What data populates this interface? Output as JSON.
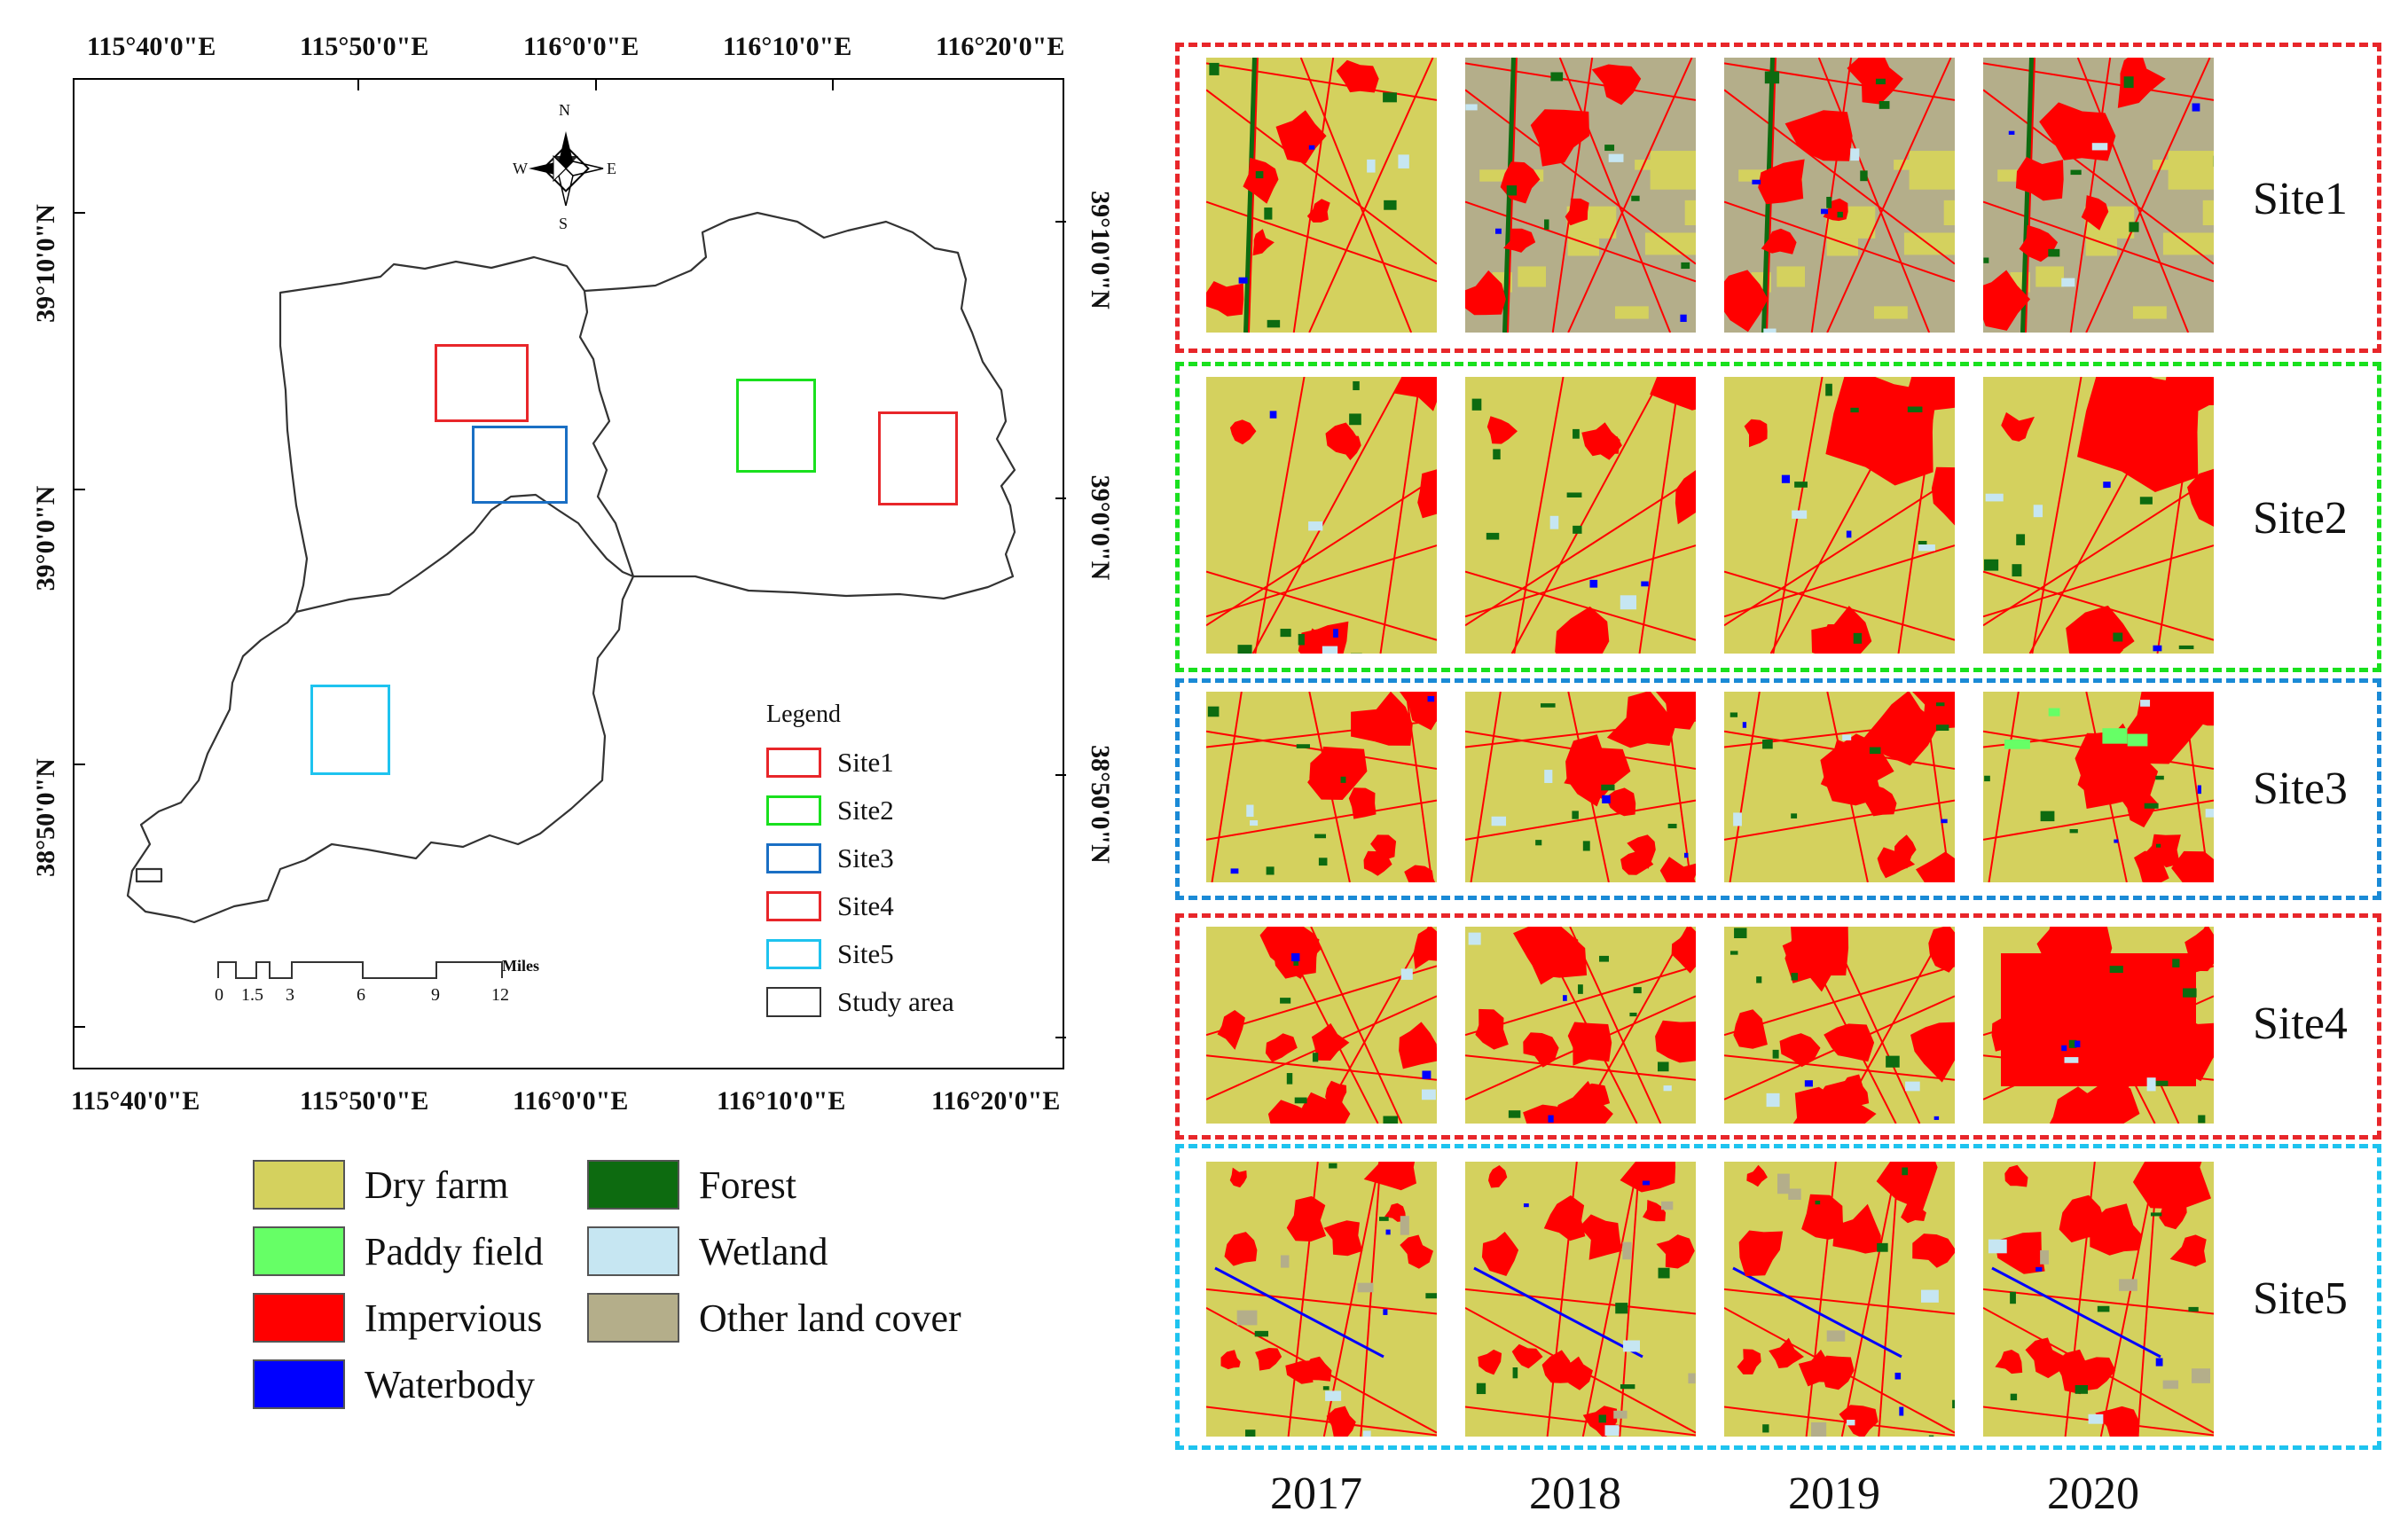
{
  "map": {
    "top_longitudes": [
      "115°40'0\"E",
      "115°50'0\"E",
      "116°0'0\"E",
      "116°10'0\"E",
      "116°20'0\"E"
    ],
    "bottom_longitudes": [
      "115°40'0\"E",
      "115°50'0\"E",
      "116°0'0\"E",
      "116°10'0\"E",
      "116°20'0\"E"
    ],
    "left_latitudes": [
      "39°10'0\"N",
      "39°0'0\"N",
      "38°50'0\"N"
    ],
    "right_latitudes": [
      "39°10'0\"N",
      "39°0'0\"N",
      "38°50'0\"N"
    ],
    "compass": {
      "n": "N",
      "s": "S",
      "e": "E",
      "w": "W"
    },
    "scale_bar": {
      "ticks": [
        "0",
        "1.5",
        "3",
        "6",
        "9",
        "12"
      ],
      "unit": "Miles"
    },
    "legend": {
      "title": "Legend",
      "items": [
        {
          "label": "Site1",
          "color": "#e8262a"
        },
        {
          "label": "Site2",
          "color": "#19e01e"
        },
        {
          "label": "Site3",
          "color": "#1a6fc4"
        },
        {
          "label": "Site4",
          "color": "#e8262a"
        },
        {
          "label": "Site5",
          "color": "#1ec3ef"
        },
        {
          "label": "Study area",
          "color": "#333333"
        }
      ]
    }
  },
  "land_cover_legend": [
    {
      "label": "Dry farm",
      "color": "#d4d15e"
    },
    {
      "label": "Forest",
      "color": "#0d6b10"
    },
    {
      "label": "Paddy field",
      "color": "#66ff66"
    },
    {
      "label": "Wetland",
      "color": "#c6e6f2"
    },
    {
      "label": "Impervious",
      "color": "#ff0000"
    },
    {
      "label": "Other land cover",
      "color": "#b4ae8a"
    },
    {
      "label": "Waterbody",
      "color": "#0000ff"
    }
  ],
  "sites": [
    {
      "label": "Site1",
      "border_color": "#e8262a"
    },
    {
      "label": "Site2",
      "border_color": "#19e01e"
    },
    {
      "label": "Site3",
      "border_color": "#1a8ad6"
    },
    {
      "label": "Site4",
      "border_color": "#e8262a"
    },
    {
      "label": "Site5",
      "border_color": "#1ec3ef"
    }
  ],
  "years": [
    "2017",
    "2018",
    "2019",
    "2020"
  ]
}
